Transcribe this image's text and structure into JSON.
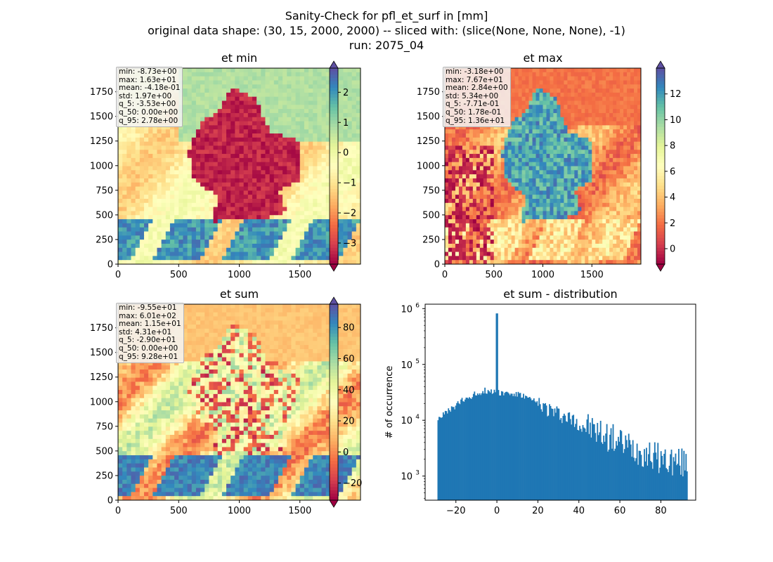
{
  "figure": {
    "title_lines": [
      "Sanity-Check for pfl_et_surf in [mm]",
      "original data shape: (30, 15, 2000, 2000) -- sliced with: (slice(None, None, None), -1)",
      "run: 2075_04"
    ]
  },
  "colors": {
    "spectral": [
      "#9e0142",
      "#d53e4f",
      "#f46d43",
      "#fdae61",
      "#fee08b",
      "#ffffbf",
      "#e6f598",
      "#abdda4",
      "#66c2a5",
      "#3288bd",
      "#5e4fa2"
    ],
    "hist_bar": "#1f77b4"
  },
  "panels": [
    {
      "id": "et_min",
      "title": "et min",
      "x_ticks": [
        "0",
        "500",
        "1000",
        "1500"
      ],
      "y_ticks": [
        "0",
        "250",
        "500",
        "750",
        "1000",
        "1250",
        "1500",
        "1750"
      ],
      "colorbar": {
        "vmin": -3.7,
        "vmax": 2.8,
        "ticks": [
          -3,
          -2,
          -1,
          0,
          1,
          2
        ],
        "tick_labels": [
          "−3",
          "−2",
          "−1",
          "0",
          "1",
          "2"
        ]
      },
      "map_style": "min",
      "stats": [
        "min: -8.73e+00",
        "max: 1.63e+01",
        "mean: -4.18e-01",
        "std: 1.97e+00",
        "q_5: -3.53e+00",
        "q_50: 0.00e+00",
        "q_95: 2.78e+00"
      ]
    },
    {
      "id": "et_max",
      "title": "et max",
      "x_ticks": [
        "0",
        "500",
        "1000",
        "1500"
      ],
      "y_ticks": [
        "0",
        "250",
        "500",
        "750",
        "1000",
        "1250",
        "1500",
        "1750"
      ],
      "colorbar": {
        "vmin": -1.2,
        "vmax": 14,
        "ticks": [
          0,
          2,
          4,
          6,
          8,
          10,
          12
        ],
        "tick_labels": [
          "0",
          "2",
          "4",
          "6",
          "8",
          "10",
          "12"
        ]
      },
      "map_style": "max",
      "stats": [
        "min: -3.18e+00",
        "max: 7.67e+01",
        "mean: 2.84e+00",
        "std: 5.34e+00",
        "q_5: -7.71e-01",
        "q_50: 1.78e-01",
        "q_95: 1.36e+01"
      ]
    },
    {
      "id": "et_sum",
      "title": "et sum",
      "x_ticks": [
        "0",
        "500",
        "1000",
        "1500"
      ],
      "y_ticks": [
        "0",
        "250",
        "500",
        "750",
        "1000",
        "1250",
        "1500",
        "1750"
      ],
      "colorbar": {
        "vmin": -31,
        "vmax": 95,
        "ticks": [
          -20,
          0,
          20,
          40,
          60,
          80
        ],
        "tick_labels": [
          "−20",
          "0",
          "20",
          "40",
          "60",
          "80"
        ]
      },
      "map_style": "sum",
      "stats": [
        "min: -9.55e+01",
        "max: 6.01e+02",
        "mean: 1.15e+01",
        "std: 4.31e+01",
        "q_5: -2.90e+01",
        "q_50: 0.00e+00",
        "q_95: 9.28e+01"
      ]
    }
  ],
  "chart_data": {
    "type": "bar",
    "title": "et sum - distribution",
    "xlabel": "",
    "ylabel": "# of occurrence",
    "y_scale": "log",
    "xlim": [
      -35,
      97
    ],
    "ylim": [
      370,
      1200000
    ],
    "x_ticks": [
      -20,
      0,
      20,
      40,
      60,
      80
    ],
    "x_tick_labels": [
      "−20",
      "0",
      "20",
      "40",
      "60",
      "80"
    ],
    "y_ticks": [
      1000,
      10000,
      100000,
      1000000
    ],
    "y_tick_labels": [
      "10",
      "10",
      "10",
      "10"
    ],
    "y_tick_exponents": [
      "3",
      "4",
      "5",
      "6"
    ],
    "bin_range": [
      -29,
      93
    ],
    "spike": {
      "x": 0,
      "count": 820000
    },
    "profile_x": [
      -29,
      -24,
      -18,
      -12,
      -6,
      0,
      6,
      12,
      20,
      30,
      40,
      50,
      60,
      70,
      80,
      93
    ],
    "profile_counts": [
      11000,
      14000,
      21000,
      28000,
      34000,
      32000,
      30000,
      28000,
      20000,
      13000,
      9000,
      5800,
      4000,
      2800,
      2000,
      1600
    ]
  }
}
